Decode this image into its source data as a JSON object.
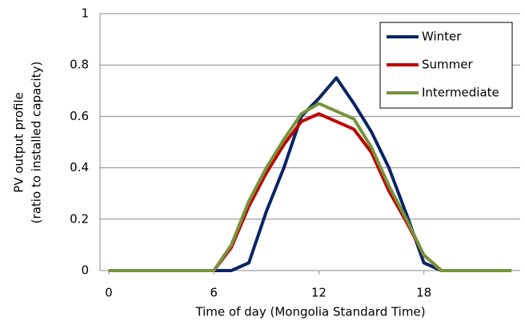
{
  "chart_data": {
    "type": "line",
    "xlabel": "Time of day (Mongolia Standard Time)",
    "ylabel": [
      "PV output profile",
      "(ratio to installed capacity)"
    ],
    "x": [
      0,
      1,
      2,
      3,
      4,
      5,
      6,
      7,
      8,
      9,
      10,
      11,
      12,
      13,
      14,
      15,
      16,
      17,
      18,
      19,
      20,
      21,
      22,
      23
    ],
    "series": [
      {
        "name": "Winter",
        "color": "#0a2466",
        "values": [
          0,
          0,
          0,
          0,
          0,
          0,
          0,
          0,
          0.03,
          0.23,
          0.4,
          0.6,
          0.67,
          0.75,
          0.65,
          0.54,
          0.4,
          0.22,
          0.03,
          0,
          0,
          0,
          0,
          0
        ]
      },
      {
        "name": "Summer",
        "color": "#c00000",
        "values": [
          0,
          0,
          0,
          0,
          0,
          0,
          0,
          0.09,
          0.25,
          0.38,
          0.49,
          0.58,
          0.61,
          0.58,
          0.55,
          0.46,
          0.31,
          0.19,
          0.06,
          0,
          0,
          0,
          0,
          0
        ]
      },
      {
        "name": "Intermediate",
        "color": "#77933c",
        "values": [
          0,
          0,
          0,
          0,
          0,
          0,
          0,
          0.1,
          0.27,
          0.4,
          0.51,
          0.61,
          0.65,
          0.62,
          0.59,
          0.48,
          0.33,
          0.2,
          0.06,
          0,
          0,
          0,
          0,
          0
        ]
      }
    ],
    "xlim": [
      -0.5,
      23.5
    ],
    "xticks": [
      0,
      6,
      12,
      18
    ],
    "ylim": [
      0,
      1
    ],
    "yticks": [
      0,
      0.2,
      0.4,
      0.6,
      0.8,
      1
    ],
    "grid": true,
    "legend": "upper-right"
  }
}
